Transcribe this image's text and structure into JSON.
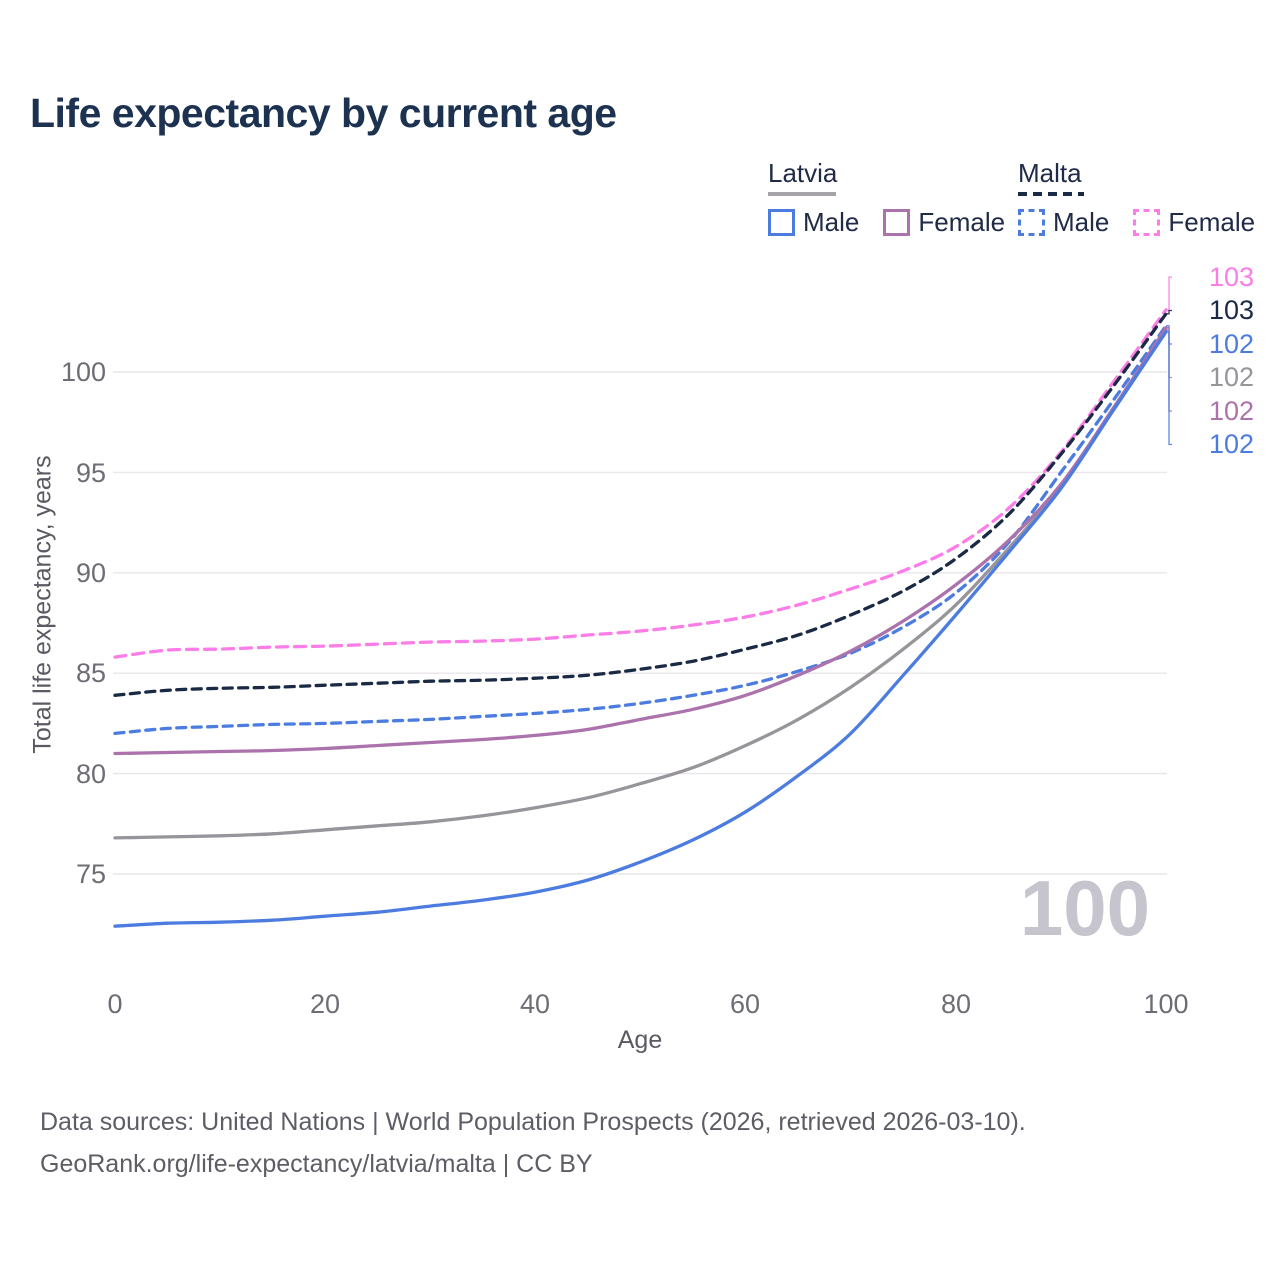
{
  "title": "Life expectancy by current age",
  "legend": {
    "groups": [
      {
        "country": "Latvia",
        "line_style": "solid",
        "underline_color": "#A5A3A8",
        "entries": [
          {
            "label": "Male",
            "color": "#4C7CE0",
            "dashed": false
          },
          {
            "label": "Female",
            "color": "#AC72AC",
            "dashed": false
          }
        ]
      },
      {
        "country": "Malta",
        "line_style": "dashed",
        "underline_color": "#1B2A44",
        "entries": [
          {
            "label": "Male",
            "color": "#4C7CE0",
            "dashed": true
          },
          {
            "label": "Female",
            "color": "#FB7DE8",
            "dashed": true
          }
        ]
      }
    ]
  },
  "chart_data": {
    "type": "line",
    "title": "Life expectancy by current age",
    "xlabel": "Age",
    "ylabel": "Total life expectancy, years",
    "xticks": [
      0,
      20,
      40,
      60,
      80,
      100
    ],
    "yticks": [
      100,
      95,
      90,
      85,
      80,
      75
    ],
    "xlim": [
      0,
      100
    ],
    "ylim": [
      71.5,
      104
    ],
    "grid": true,
    "legend_position": "top-right",
    "watermark": "100",
    "x": [
      0,
      5,
      10,
      15,
      20,
      25,
      30,
      35,
      40,
      45,
      50,
      55,
      60,
      65,
      70,
      75,
      80,
      85,
      90,
      95,
      100
    ],
    "series": [
      {
        "name": "Malta Female",
        "color": "#FB7DE8",
        "dashed": true,
        "flag": "malta",
        "end_label": "103",
        "values": [
          85.8,
          86.15,
          86.2,
          86.3,
          86.35,
          86.45,
          86.55,
          86.6,
          86.7,
          86.9,
          87.1,
          87.4,
          87.8,
          88.4,
          89.2,
          90.1,
          91.3,
          93.2,
          96.0,
          99.5,
          103.1
        ]
      },
      {
        "name": "Malta (both sexes)",
        "color": "#1B2A44",
        "dashed": true,
        "flag": "malta",
        "end_label": "103",
        "values": [
          83.9,
          84.15,
          84.25,
          84.3,
          84.4,
          84.5,
          84.6,
          84.65,
          84.75,
          84.9,
          85.2,
          85.6,
          86.2,
          86.9,
          87.9,
          89.1,
          90.7,
          92.9,
          95.9,
          99.3,
          102.9
        ]
      },
      {
        "name": "Malta Male",
        "color": "#4C7CE0",
        "dashed": true,
        "flag": "malta",
        "end_label": "102",
        "values": [
          82.0,
          82.25,
          82.35,
          82.45,
          82.5,
          82.6,
          82.7,
          82.85,
          83.0,
          83.2,
          83.5,
          83.9,
          84.4,
          85.1,
          86.0,
          87.3,
          89.0,
          91.5,
          95.0,
          98.6,
          102.3
        ]
      },
      {
        "name": "Latvia (both sexes)",
        "color": "#97949A",
        "dashed": false,
        "flag": "latvia",
        "end_label": "102",
        "values": [
          76.8,
          76.85,
          76.9,
          77.0,
          77.2,
          77.4,
          77.6,
          77.9,
          78.3,
          78.8,
          79.5,
          80.3,
          81.4,
          82.7,
          84.3,
          86.2,
          88.4,
          91.2,
          94.3,
          98.2,
          102.1
        ]
      },
      {
        "name": "Latvia Female",
        "color": "#AC72AC",
        "dashed": false,
        "flag": "latvia",
        "end_label": "102",
        "values": [
          81.0,
          81.05,
          81.1,
          81.15,
          81.25,
          81.4,
          81.55,
          81.7,
          81.9,
          82.2,
          82.7,
          83.2,
          83.9,
          84.9,
          86.1,
          87.6,
          89.4,
          91.6,
          94.4,
          98.2,
          102.2
        ]
      },
      {
        "name": "Latvia Male",
        "color": "#4C7CE0",
        "dashed": false,
        "flag": "latvia",
        "end_label": "102",
        "values": [
          72.4,
          72.55,
          72.6,
          72.7,
          72.9,
          73.1,
          73.4,
          73.7,
          74.1,
          74.7,
          75.6,
          76.7,
          78.1,
          79.9,
          82.0,
          84.9,
          87.9,
          91.0,
          94.2,
          98.1,
          102.0
        ]
      }
    ]
  },
  "colors": {
    "title_text": "#1C3250",
    "legend_text": "#202B47",
    "tick_text": "#6E6D75",
    "axis_title_text": "#5B5A63",
    "footer_text": "#5E5D66",
    "gridline": "#EAE5EA",
    "watermark": "#C6C4CC",
    "flag_red": "#C9112E",
    "flag_white": "#F2EDF0",
    "blue": "#4C7CE0",
    "purple": "#AC72AC",
    "pink": "#FB7DE8",
    "navy": "#1B2A44",
    "gray": "#97949A"
  },
  "footer": {
    "line1": "Data sources: United Nations | World Population Prospects (2026, retrieved 2026-03-10).",
    "line2": "GeoRank.org/life-expectancy/latvia/malta | CC BY"
  }
}
